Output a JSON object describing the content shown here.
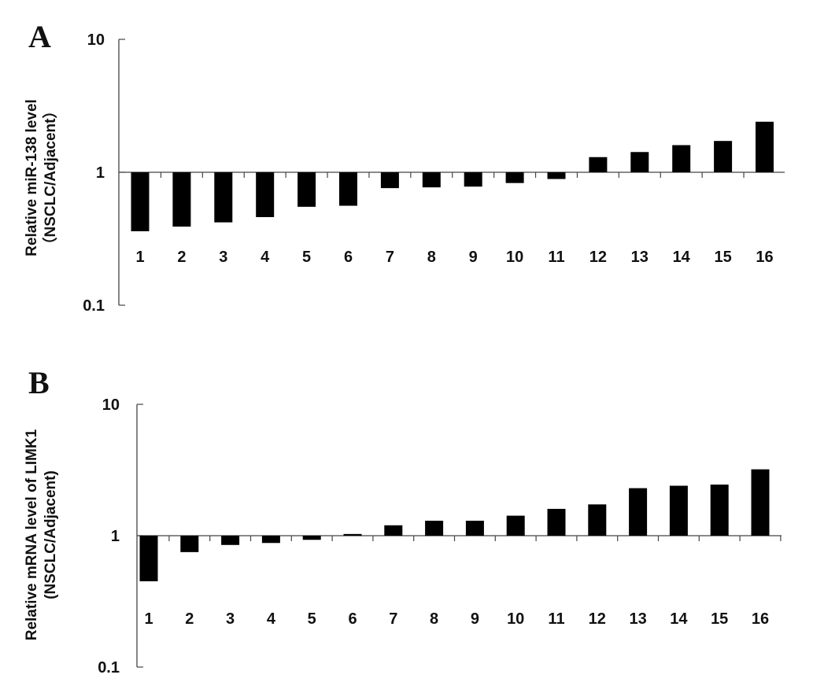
{
  "chart_data": [
    {
      "type": "bar",
      "panel_label": "A",
      "yscale": "log",
      "ylim": [
        0.1,
        10
      ],
      "yticks": [
        "10",
        "1",
        "0.1"
      ],
      "baseline": 1,
      "ylabel_lines": [
        "Relative miR-138 level",
        "（NSCLC/Adjacent）"
      ],
      "categories": [
        "1",
        "2",
        "3",
        "4",
        "5",
        "6",
        "7",
        "8",
        "9",
        "10",
        "11",
        "12",
        "13",
        "14",
        "15",
        "16"
      ],
      "values": [
        0.36,
        0.39,
        0.42,
        0.46,
        0.55,
        0.56,
        0.76,
        0.77,
        0.78,
        0.83,
        0.89,
        1.3,
        1.42,
        1.6,
        1.72,
        2.4
      ],
      "bar_color": "#000000"
    },
    {
      "type": "bar",
      "panel_label": "B",
      "yscale": "log",
      "ylim": [
        0.1,
        10
      ],
      "yticks": [
        "10",
        "1",
        "0.1"
      ],
      "baseline": 1,
      "ylabel_lines": [
        "Relative mRNA level of LIMK1",
        "(NSCLC/Adjacent)"
      ],
      "categories": [
        "1",
        "2",
        "3",
        "4",
        "5",
        "6",
        "7",
        "8",
        "9",
        "10",
        "11",
        "12",
        "13",
        "14",
        "15",
        "16"
      ],
      "values": [
        0.45,
        0.75,
        0.85,
        0.88,
        0.93,
        1.03,
        1.2,
        1.3,
        1.3,
        1.42,
        1.6,
        1.73,
        2.3,
        2.4,
        2.45,
        3.2
      ],
      "bar_color": "#000000"
    }
  ]
}
